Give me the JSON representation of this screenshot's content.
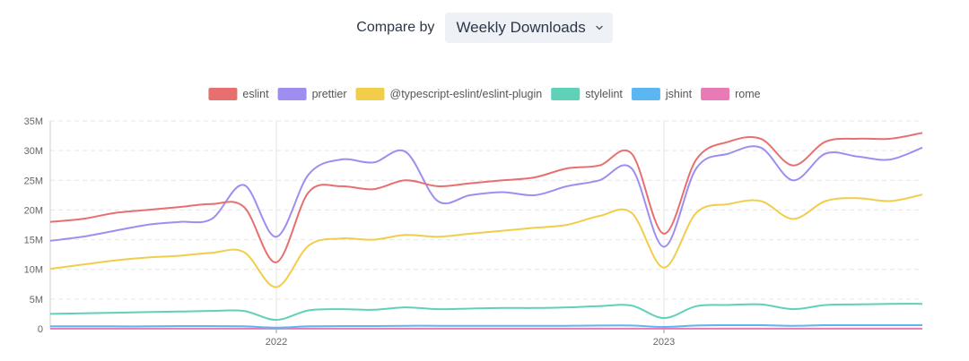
{
  "compare": {
    "label": "Compare by",
    "selected": "Weekly Downloads"
  },
  "icons": {
    "dropdown": "chevron-down-icon"
  },
  "chart_data": {
    "type": "line",
    "title": "",
    "xlabel": "",
    "ylabel": "",
    "ylim": [
      0,
      35000000
    ],
    "yticks": [
      "0",
      "5M",
      "10M",
      "15M",
      "20M",
      "25M",
      "30M",
      "35M"
    ],
    "xticks": [
      "2022",
      "2023"
    ],
    "legend_position": "top-center",
    "grid": true,
    "x": [
      "2021-06",
      "2021-07",
      "2021-08",
      "2021-09",
      "2021-10",
      "2021-11",
      "2021-12",
      "2022-01",
      "2022-02",
      "2022-03",
      "2022-04",
      "2022-05",
      "2022-06",
      "2022-07",
      "2022-08",
      "2022-09",
      "2022-10",
      "2022-11",
      "2022-12",
      "2023-01",
      "2023-02",
      "2023-03",
      "2023-04",
      "2023-05",
      "2023-06",
      "2023-07",
      "2023-08",
      "2023-09"
    ],
    "series": [
      {
        "name": "eslint",
        "color": "#e86f6f",
        "values": [
          18.0,
          18.5,
          19.5,
          20.0,
          20.5,
          21.0,
          20.5,
          11.2,
          23.0,
          24.0,
          23.5,
          25.0,
          24.0,
          24.5,
          25.0,
          25.5,
          27.0,
          27.5,
          29.5,
          16.0,
          28.5,
          31.5,
          32.0,
          27.5,
          31.5,
          32.0,
          32.0,
          33.0
        ]
      },
      {
        "name": "prettier",
        "color": "#9f8df0",
        "values": [
          14.8,
          15.5,
          16.5,
          17.5,
          18.0,
          18.5,
          24.2,
          15.5,
          26.0,
          28.5,
          28.0,
          29.8,
          21.5,
          22.5,
          23.0,
          22.5,
          24.0,
          25.0,
          27.0,
          13.8,
          27.0,
          29.5,
          30.5,
          25.0,
          29.5,
          29.0,
          28.5,
          30.5
        ]
      },
      {
        "name": "@typescript-eslint/eslint-plugin",
        "color": "#f2cd4a",
        "values": [
          10.1,
          10.8,
          11.5,
          12.0,
          12.3,
          12.8,
          12.9,
          7.0,
          14.0,
          15.2,
          15.0,
          15.8,
          15.5,
          16.0,
          16.5,
          17.0,
          17.5,
          19.0,
          19.5,
          10.3,
          19.5,
          21.0,
          21.5,
          18.5,
          21.5,
          22.0,
          21.5,
          22.6
        ]
      },
      {
        "name": "stylelint",
        "color": "#5fd1b8",
        "values": [
          2.5,
          2.6,
          2.7,
          2.8,
          2.9,
          3.0,
          3.0,
          1.5,
          3.1,
          3.3,
          3.2,
          3.6,
          3.3,
          3.4,
          3.5,
          3.5,
          3.6,
          3.8,
          3.9,
          1.8,
          3.8,
          4.0,
          4.1,
          3.3,
          4.0,
          4.1,
          4.2,
          4.2
        ]
      },
      {
        "name": "jshint",
        "color": "#5cb6f2",
        "values": [
          0.4,
          0.4,
          0.4,
          0.4,
          0.45,
          0.45,
          0.4,
          0.2,
          0.4,
          0.45,
          0.45,
          0.5,
          0.5,
          0.5,
          0.5,
          0.5,
          0.5,
          0.55,
          0.55,
          0.3,
          0.55,
          0.6,
          0.6,
          0.5,
          0.6,
          0.6,
          0.6,
          0.6
        ]
      },
      {
        "name": "rome",
        "color": "#e87ab5",
        "values": [
          0.01,
          0.01,
          0.01,
          0.01,
          0.01,
          0.01,
          0.01,
          0.01,
          0.01,
          0.01,
          0.01,
          0.01,
          0.01,
          0.01,
          0.01,
          0.01,
          0.01,
          0.01,
          0.01,
          0.01,
          0.01,
          0.02,
          0.02,
          0.02,
          0.02,
          0.02,
          0.02,
          0.02
        ]
      }
    ]
  }
}
